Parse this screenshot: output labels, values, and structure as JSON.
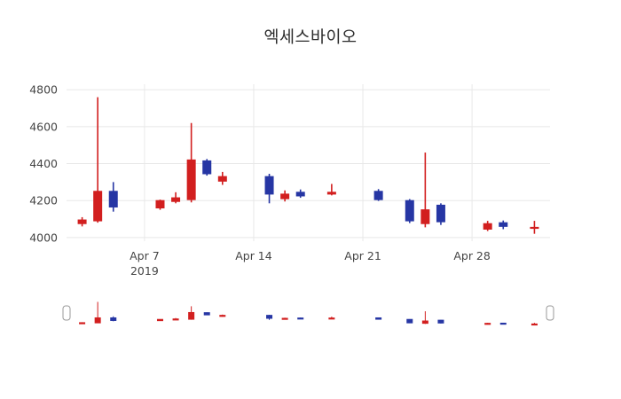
{
  "chart_data": {
    "type": "candlestick",
    "title": "엑세스바이오",
    "xlabel": "",
    "ylabel": "",
    "y_ticks": [
      4000,
      4200,
      4400,
      4600,
      4800
    ],
    "ylim": [
      3980,
      4830
    ],
    "xlim_days": [
      2,
      33
    ],
    "x_ticks": [
      {
        "day": 7,
        "label": "Apr 7",
        "sub": "2019"
      },
      {
        "day": 14,
        "label": "Apr 14"
      },
      {
        "day": 21,
        "label": "Apr 21"
      },
      {
        "day": 28,
        "label": "Apr 28"
      }
    ],
    "grid": true,
    "legend_position": "none",
    "rangeslider": true,
    "colors": {
      "increasing": "#d21f1f",
      "decreasing": "#2636a4",
      "grid": "#e8e8e8",
      "text": "#444444",
      "title": "#2b2b2b",
      "handle_stroke": "#999999",
      "handle_fill": "#ffffff"
    },
    "candles": [
      {
        "date": "Apr 3",
        "day": 3,
        "open": 4075,
        "high": 4110,
        "low": 4060,
        "close": 4095
      },
      {
        "date": "Apr 4",
        "day": 4,
        "open": 4090,
        "high": 4760,
        "low": 4080,
        "close": 4250
      },
      {
        "date": "Apr 5",
        "day": 5,
        "open": 4250,
        "high": 4300,
        "low": 4140,
        "close": 4165
      },
      {
        "date": "Apr 8",
        "day": 8,
        "open": 4160,
        "high": 4205,
        "low": 4150,
        "close": 4200
      },
      {
        "date": "Apr 9",
        "day": 9,
        "open": 4195,
        "high": 4245,
        "low": 4185,
        "close": 4215
      },
      {
        "date": "Apr 10",
        "day": 10,
        "open": 4205,
        "high": 4620,
        "low": 4190,
        "close": 4420
      },
      {
        "date": "Apr 11",
        "day": 11,
        "open": 4415,
        "high": 4425,
        "low": 4335,
        "close": 4345
      },
      {
        "date": "Apr 12",
        "day": 12,
        "open": 4305,
        "high": 4355,
        "low": 4285,
        "close": 4330
      },
      {
        "date": "Apr 15",
        "day": 15,
        "open": 4330,
        "high": 4345,
        "low": 4185,
        "close": 4235
      },
      {
        "date": "Apr 16",
        "day": 16,
        "open": 4210,
        "high": 4255,
        "low": 4195,
        "close": 4235
      },
      {
        "date": "Apr 17",
        "day": 17,
        "open": 4245,
        "high": 4260,
        "low": 4215,
        "close": 4225
      },
      {
        "date": "Apr 19",
        "day": 19,
        "open": 4235,
        "high": 4290,
        "low": 4228,
        "close": 4245
      },
      {
        "date": "Apr 22",
        "day": 22,
        "open": 4250,
        "high": 4262,
        "low": 4198,
        "close": 4205
      },
      {
        "date": "Apr 24",
        "day": 24,
        "open": 4200,
        "high": 4208,
        "low": 4078,
        "close": 4090
      },
      {
        "date": "Apr 25",
        "day": 25,
        "open": 4075,
        "high": 4460,
        "low": 4055,
        "close": 4150
      },
      {
        "date": "Apr 26",
        "day": 26,
        "open": 4175,
        "high": 4185,
        "low": 4068,
        "close": 4085
      },
      {
        "date": "Apr 29",
        "day": 29,
        "open": 4045,
        "high": 4090,
        "low": 4035,
        "close": 4075
      },
      {
        "date": "Apr 30",
        "day": 30,
        "open": 4080,
        "high": 4092,
        "low": 4045,
        "close": 4060
      },
      {
        "date": "May 2",
        "day": 32,
        "open": 4050,
        "high": 4090,
        "low": 4020,
        "close": 4055
      }
    ]
  }
}
